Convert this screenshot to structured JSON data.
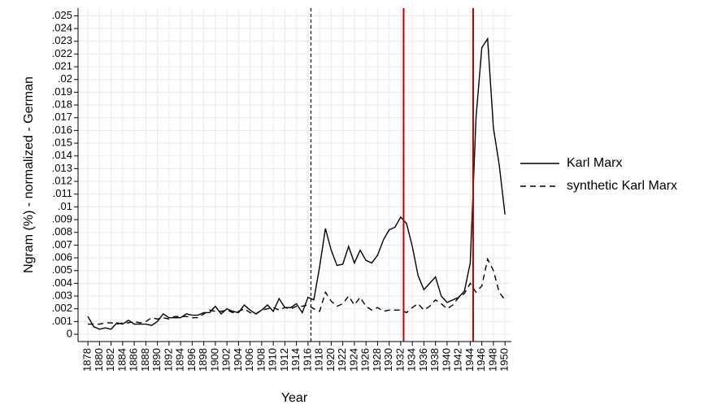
{
  "chart_data": {
    "type": "line",
    "y_label": "Ngram (%) - normalized - German",
    "x_label": "Year",
    "x": [
      1878,
      1879,
      1880,
      1881,
      1882,
      1883,
      1884,
      1885,
      1886,
      1887,
      1888,
      1889,
      1890,
      1891,
      1892,
      1893,
      1894,
      1895,
      1896,
      1897,
      1898,
      1899,
      1900,
      1901,
      1902,
      1903,
      1904,
      1905,
      1906,
      1907,
      1908,
      1909,
      1910,
      1911,
      1912,
      1913,
      1914,
      1915,
      1916,
      1917,
      1918,
      1919,
      1920,
      1921,
      1922,
      1923,
      1924,
      1925,
      1926,
      1927,
      1928,
      1929,
      1930,
      1931,
      1932,
      1933,
      1934,
      1935,
      1936,
      1937,
      1938,
      1939,
      1940,
      1941,
      1942,
      1943,
      1944,
      1945,
      1946,
      1947,
      1948,
      1949,
      1950
    ],
    "series": [
      {
        "name": "Karl Marx",
        "color": "#000000",
        "dash": "solid",
        "values": [
          0.0014,
          0.0006,
          0.0004,
          0.0005,
          0.0004,
          0.0009,
          0.0008,
          0.0011,
          0.0008,
          0.0008,
          0.0008,
          0.0007,
          0.001,
          0.0016,
          0.0013,
          0.0013,
          0.0013,
          0.0016,
          0.0015,
          0.0015,
          0.0017,
          0.0017,
          0.0022,
          0.0016,
          0.002,
          0.0018,
          0.0017,
          0.0023,
          0.0019,
          0.0016,
          0.0019,
          0.0023,
          0.0018,
          0.0028,
          0.0021,
          0.0021,
          0.0024,
          0.0017,
          0.0029,
          0.0027,
          0.0053,
          0.0083,
          0.0066,
          0.0054,
          0.0055,
          0.0069,
          0.0056,
          0.0066,
          0.0058,
          0.0056,
          0.0062,
          0.0074,
          0.0082,
          0.0084,
          0.0092,
          0.0087,
          0.0069,
          0.0046,
          0.0035,
          0.004,
          0.0045,
          0.003,
          0.0025,
          0.0027,
          0.0029,
          0.0034,
          0.0056,
          0.017,
          0.0225,
          0.0232,
          0.0162,
          0.0133,
          0.0094
        ]
      },
      {
        "name": "synthetic Karl Marx",
        "color": "#000000",
        "dash": "dashed",
        "values": [
          0.0008,
          0.0008,
          0.0008,
          0.0009,
          0.0009,
          0.0008,
          0.0009,
          0.0009,
          0.001,
          0.0009,
          0.001,
          0.0013,
          0.0012,
          0.0013,
          0.0012,
          0.0014,
          0.0014,
          0.0014,
          0.0013,
          0.0013,
          0.0016,
          0.0019,
          0.0018,
          0.0018,
          0.0019,
          0.0017,
          0.0018,
          0.002,
          0.0017,
          0.0016,
          0.0019,
          0.002,
          0.0021,
          0.0019,
          0.0021,
          0.002,
          0.0022,
          0.0022,
          0.0023,
          0.002,
          0.0018,
          0.0033,
          0.0026,
          0.0022,
          0.0024,
          0.003,
          0.0023,
          0.0029,
          0.0022,
          0.0019,
          0.0021,
          0.0018,
          0.0019,
          0.0019,
          0.0019,
          0.0017,
          0.0021,
          0.0024,
          0.0019,
          0.0022,
          0.0027,
          0.0024,
          0.002,
          0.0023,
          0.0029,
          0.0032,
          0.004,
          0.0033,
          0.0038,
          0.0059,
          0.005,
          0.0033,
          0.0027
        ]
      }
    ],
    "vlines": [
      {
        "x": 1916.5,
        "color": "#000000",
        "dash": "dashed"
      },
      {
        "x": 1932.5,
        "color": "#c00000",
        "dash": "solid"
      },
      {
        "x": 1944.5,
        "color": "#c00000",
        "dash": "solid"
      }
    ],
    "xlim": [
      1876.3,
      1951.1
    ],
    "ylim": [
      -0.00057,
      0.0256
    ],
    "xticks": [
      1878,
      1880,
      1882,
      1884,
      1886,
      1888,
      1890,
      1892,
      1894,
      1896,
      1898,
      1900,
      1902,
      1904,
      1906,
      1908,
      1910,
      1912,
      1914,
      1916,
      1918,
      1920,
      1922,
      1924,
      1926,
      1928,
      1930,
      1932,
      1934,
      1936,
      1938,
      1940,
      1942,
      1944,
      1946,
      1948,
      1950
    ],
    "yticks": [
      0,
      {
        "value": 0.001,
        "label": ".001"
      },
      {
        "value": 0.002,
        "label": ".002"
      },
      {
        "value": 0.003,
        "label": ".003"
      },
      {
        "value": 0.004,
        "label": ".004"
      },
      {
        "value": 0.005,
        "label": ".005"
      },
      {
        "value": 0.006,
        "label": ".006"
      },
      {
        "value": 0.007,
        "label": ".007"
      },
      {
        "value": 0.008,
        "label": ".008"
      },
      {
        "value": 0.009,
        "label": ".009"
      },
      {
        "value": 0.01,
        "label": ".01"
      },
      {
        "value": 0.011,
        "label": ".011"
      },
      {
        "value": 0.012,
        "label": ".012"
      },
      {
        "value": 0.013,
        "label": ".013"
      },
      {
        "value": 0.014,
        "label": ".014"
      },
      {
        "value": 0.015,
        "label": ".015"
      },
      {
        "value": 0.016,
        "label": ".016"
      },
      {
        "value": 0.017,
        "label": ".017"
      },
      {
        "value": 0.018,
        "label": ".018"
      },
      {
        "value": 0.019,
        "label": ".019"
      },
      {
        "value": 0.02,
        "label": ".02"
      },
      {
        "value": 0.021,
        "label": ".021"
      },
      {
        "value": 0.022,
        "label": ".022"
      },
      {
        "value": 0.023,
        "label": ".023"
      },
      {
        "value": 0.024,
        "label": ".024"
      },
      {
        "value": 0.025,
        "label": ".025"
      }
    ],
    "grid": true,
    "legend_position": "right"
  }
}
